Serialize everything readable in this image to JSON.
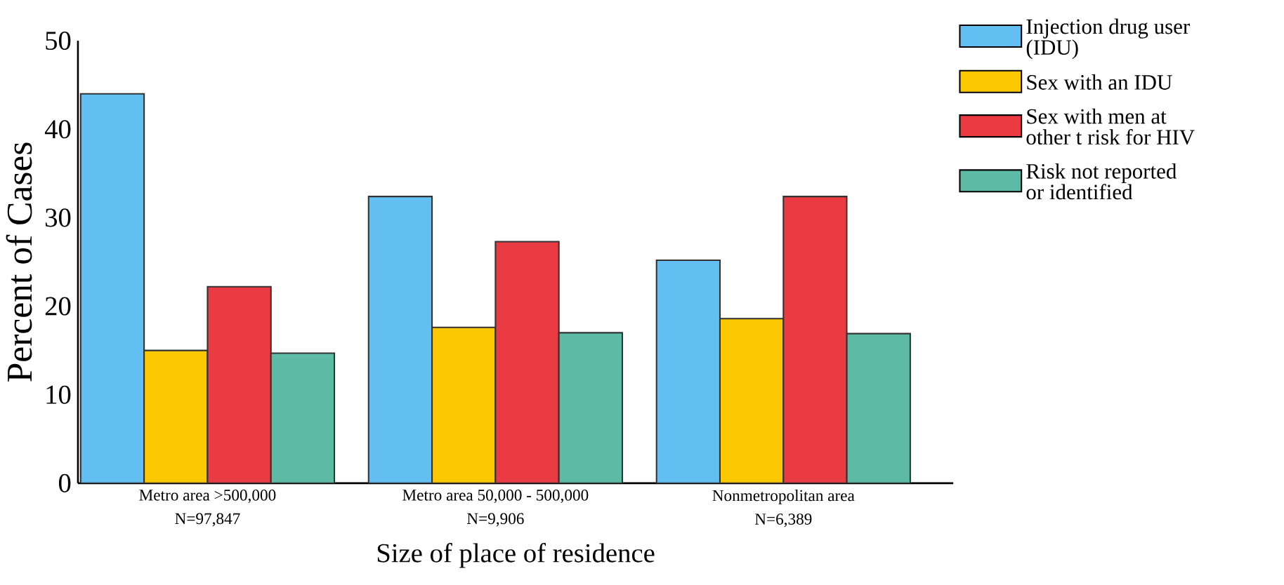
{
  "chart_data": {
    "type": "bar",
    "xlabel": "Size of place of residence",
    "ylabel": "Percent of Cases",
    "categories": [
      "Metro area >500,000\nN=97,847",
      "Metro area 50,000 - 500,000\nN=9,906",
      "Nonmetropolitan area\nN=6,389"
    ],
    "series": [
      {
        "name": "Injection drug user\n(IDU)",
        "color": "#63bff2",
        "values": [
          44.0,
          32.4,
          25.2
        ]
      },
      {
        "name": "Sex with an IDU",
        "color": "#fcc900",
        "values": [
          15.0,
          17.6,
          18.6
        ]
      },
      {
        "name": "Sex with men at\nother t risk for HIV",
        "color": "#ea3a42",
        "values": [
          22.2,
          27.3,
          32.4
        ]
      },
      {
        "name": "Risk not reported\nor identified",
        "color": "#5dbba5",
        "values": [
          14.7,
          17.0,
          16.9
        ]
      }
    ],
    "ylim": [
      0,
      50
    ],
    "yticks": [
      0,
      10,
      20,
      30,
      40,
      50
    ],
    "grid": false,
    "legend": "top right"
  }
}
